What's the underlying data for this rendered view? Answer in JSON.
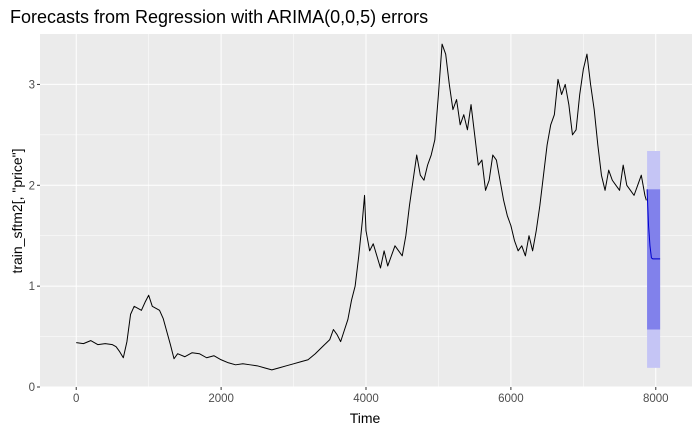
{
  "chart_data": {
    "type": "line",
    "title": "Forecasts from Regression with ARIMA(0,0,5) errors",
    "xlabel": "Time",
    "ylabel": "train_sftm2[, \"price\"]",
    "xlim": [
      -500,
      8500
    ],
    "ylim": [
      0,
      3.5
    ],
    "x_ticks": [
      0,
      2000,
      4000,
      6000,
      8000
    ],
    "y_ticks": [
      0,
      1,
      2,
      3
    ],
    "grid": true,
    "series": [
      {
        "role": "observed",
        "color": "#000000",
        "points": [
          [
            0,
            0.44
          ],
          [
            100,
            0.43
          ],
          [
            200,
            0.46
          ],
          [
            300,
            0.42
          ],
          [
            400,
            0.43
          ],
          [
            500,
            0.42
          ],
          [
            550,
            0.4
          ],
          [
            600,
            0.35
          ],
          [
            650,
            0.29
          ],
          [
            700,
            0.45
          ],
          [
            750,
            0.72
          ],
          [
            800,
            0.8
          ],
          [
            850,
            0.78
          ],
          [
            900,
            0.76
          ],
          [
            950,
            0.84
          ],
          [
            1000,
            0.91
          ],
          [
            1050,
            0.8
          ],
          [
            1100,
            0.78
          ],
          [
            1150,
            0.76
          ],
          [
            1200,
            0.68
          ],
          [
            1250,
            0.55
          ],
          [
            1300,
            0.42
          ],
          [
            1350,
            0.28
          ],
          [
            1400,
            0.33
          ],
          [
            1500,
            0.3
          ],
          [
            1600,
            0.34
          ],
          [
            1700,
            0.33
          ],
          [
            1800,
            0.29
          ],
          [
            1900,
            0.31
          ],
          [
            2000,
            0.27
          ],
          [
            2100,
            0.24
          ],
          [
            2200,
            0.22
          ],
          [
            2300,
            0.23
          ],
          [
            2400,
            0.22
          ],
          [
            2500,
            0.21
          ],
          [
            2600,
            0.19
          ],
          [
            2700,
            0.17
          ],
          [
            2800,
            0.19
          ],
          [
            2900,
            0.21
          ],
          [
            3000,
            0.23
          ],
          [
            3100,
            0.25
          ],
          [
            3200,
            0.27
          ],
          [
            3300,
            0.33
          ],
          [
            3400,
            0.4
          ],
          [
            3500,
            0.47
          ],
          [
            3550,
            0.57
          ],
          [
            3600,
            0.52
          ],
          [
            3650,
            0.45
          ],
          [
            3700,
            0.56
          ],
          [
            3750,
            0.67
          ],
          [
            3800,
            0.86
          ],
          [
            3850,
            1.0
          ],
          [
            3900,
            1.3
          ],
          [
            3950,
            1.65
          ],
          [
            3980,
            1.9
          ],
          [
            4000,
            1.55
          ],
          [
            4050,
            1.35
          ],
          [
            4100,
            1.42
          ],
          [
            4150,
            1.3
          ],
          [
            4200,
            1.18
          ],
          [
            4250,
            1.35
          ],
          [
            4300,
            1.2
          ],
          [
            4350,
            1.3
          ],
          [
            4400,
            1.4
          ],
          [
            4450,
            1.35
          ],
          [
            4500,
            1.3
          ],
          [
            4550,
            1.5
          ],
          [
            4600,
            1.8
          ],
          [
            4650,
            2.05
          ],
          [
            4700,
            2.3
          ],
          [
            4750,
            2.1
          ],
          [
            4800,
            2.05
          ],
          [
            4850,
            2.2
          ],
          [
            4900,
            2.3
          ],
          [
            4950,
            2.45
          ],
          [
            5000,
            2.9
          ],
          [
            5050,
            3.4
          ],
          [
            5100,
            3.3
          ],
          [
            5150,
            3.0
          ],
          [
            5200,
            2.75
          ],
          [
            5250,
            2.85
          ],
          [
            5300,
            2.6
          ],
          [
            5350,
            2.7
          ],
          [
            5400,
            2.55
          ],
          [
            5450,
            2.8
          ],
          [
            5500,
            2.5
          ],
          [
            5550,
            2.2
          ],
          [
            5600,
            2.25
          ],
          [
            5650,
            1.95
          ],
          [
            5700,
            2.05
          ],
          [
            5750,
            2.3
          ],
          [
            5800,
            2.25
          ],
          [
            5900,
            1.85
          ],
          [
            5950,
            1.7
          ],
          [
            6000,
            1.6
          ],
          [
            6050,
            1.45
          ],
          [
            6100,
            1.35
          ],
          [
            6150,
            1.4
          ],
          [
            6200,
            1.3
          ],
          [
            6250,
            1.5
          ],
          [
            6300,
            1.35
          ],
          [
            6350,
            1.55
          ],
          [
            6400,
            1.8
          ],
          [
            6450,
            2.1
          ],
          [
            6500,
            2.4
          ],
          [
            6550,
            2.6
          ],
          [
            6600,
            2.7
          ],
          [
            6650,
            3.05
          ],
          [
            6700,
            2.9
          ],
          [
            6750,
            3.0
          ],
          [
            6800,
            2.8
          ],
          [
            6850,
            2.5
          ],
          [
            6900,
            2.55
          ],
          [
            6950,
            2.9
          ],
          [
            7000,
            3.15
          ],
          [
            7050,
            3.3
          ],
          [
            7100,
            3.0
          ],
          [
            7150,
            2.75
          ],
          [
            7200,
            2.4
          ],
          [
            7250,
            2.1
          ],
          [
            7300,
            1.95
          ],
          [
            7350,
            2.15
          ],
          [
            7400,
            2.05
          ],
          [
            7450,
            2.0
          ],
          [
            7500,
            1.95
          ],
          [
            7550,
            2.2
          ],
          [
            7600,
            2.0
          ],
          [
            7650,
            1.95
          ],
          [
            7700,
            1.9
          ],
          [
            7750,
            2.0
          ],
          [
            7800,
            2.1
          ],
          [
            7850,
            1.9
          ],
          [
            7870,
            1.85
          ]
        ]
      },
      {
        "role": "forecast_mean",
        "color": "#0000cc",
        "points": [
          [
            7880,
            1.96
          ],
          [
            7890,
            1.78
          ],
          [
            7900,
            1.6
          ],
          [
            7920,
            1.4
          ],
          [
            7940,
            1.28
          ],
          [
            7960,
            1.27
          ],
          [
            8000,
            1.27
          ],
          [
            8060,
            1.27
          ]
        ]
      }
    ],
    "intervals": [
      {
        "level": "95%",
        "color": "#c5c5f5",
        "x_start": 7880,
        "x_end": 8060,
        "lower": 0.19,
        "upper": 2.34
      },
      {
        "level": "80%",
        "color": "#8181eb",
        "x_start": 7880,
        "x_end": 8060,
        "lower": 0.57,
        "upper": 1.96
      }
    ],
    "colors": {
      "panel_background": "#ebebeb",
      "gridline": "#ffffff"
    }
  }
}
